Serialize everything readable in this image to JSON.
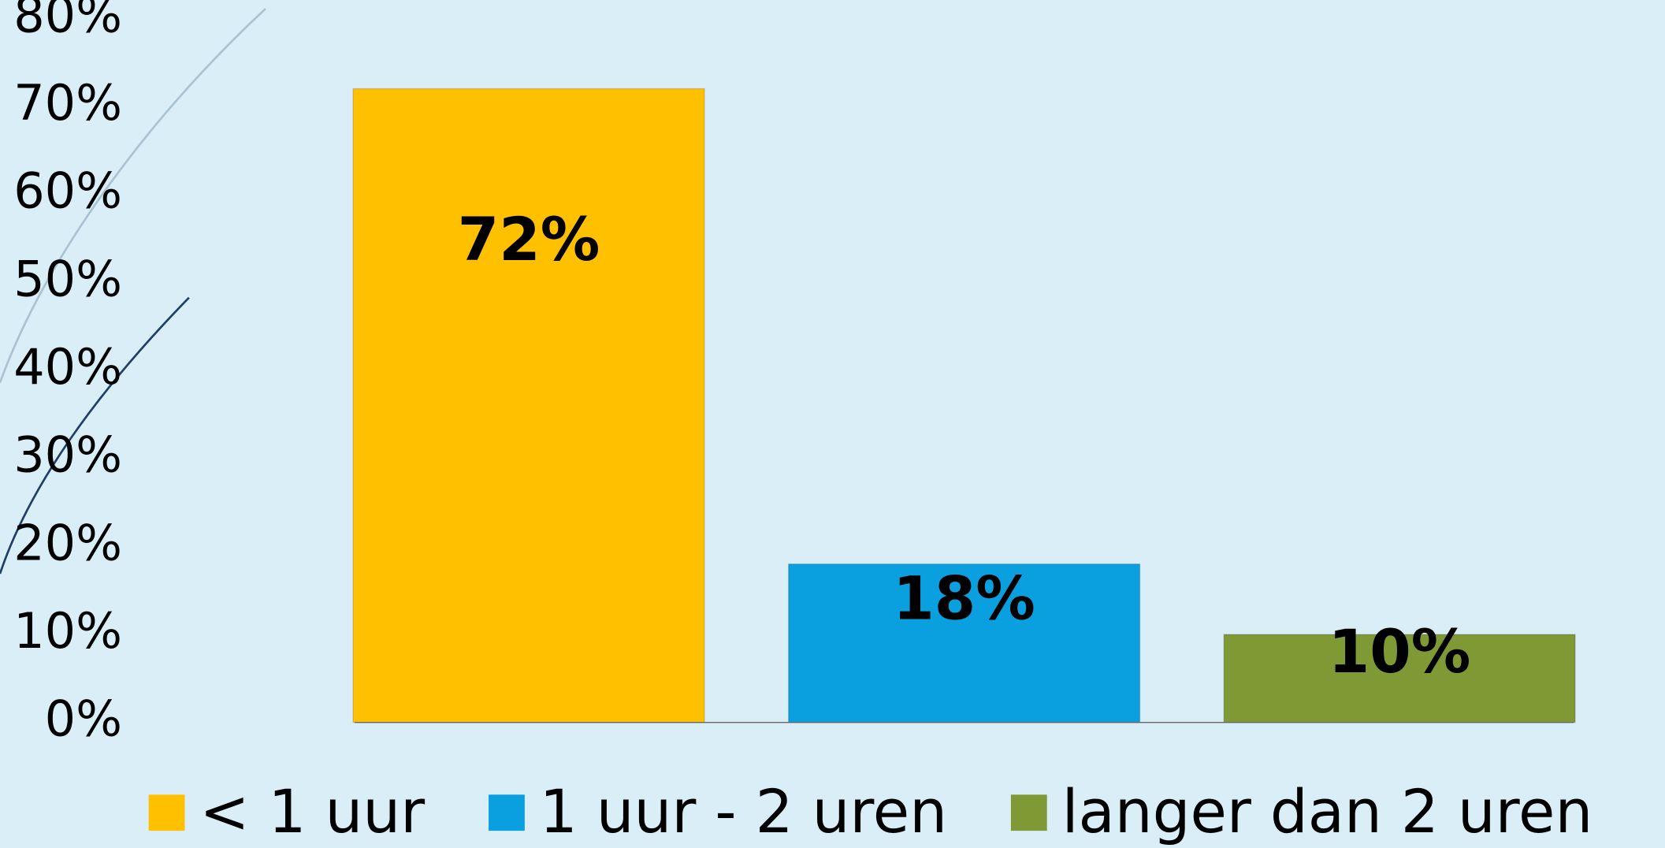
{
  "chart_data": {
    "type": "bar",
    "series": [
      {
        "name": "< 1 uur",
        "color": "#ffc000",
        "values": [
          72
        ],
        "value_labels": [
          "72%"
        ]
      },
      {
        "name": "1 uur - 2 uren",
        "color": "#0aa0e0",
        "values": [
          18
        ],
        "value_labels": [
          "18%"
        ]
      },
      {
        "name": "langer dan 2 uren",
        "color": "#7f9a35",
        "values": [
          10
        ],
        "value_labels": [
          "10%"
        ]
      }
    ],
    "ylim": [
      0,
      80
    ],
    "yticks": [
      {
        "value": 0,
        "label": "0%"
      },
      {
        "value": 10,
        "label": "10%"
      },
      {
        "value": 20,
        "label": "20%"
      },
      {
        "value": 30,
        "label": "30%"
      },
      {
        "value": 40,
        "label": "40%"
      },
      {
        "value": 50,
        "label": "50%"
      },
      {
        "value": 60,
        "label": "60%"
      },
      {
        "value": 70,
        "label": "70%"
      },
      {
        "value": 80,
        "label": "80%"
      }
    ],
    "grid": false,
    "legend": "bottom"
  }
}
